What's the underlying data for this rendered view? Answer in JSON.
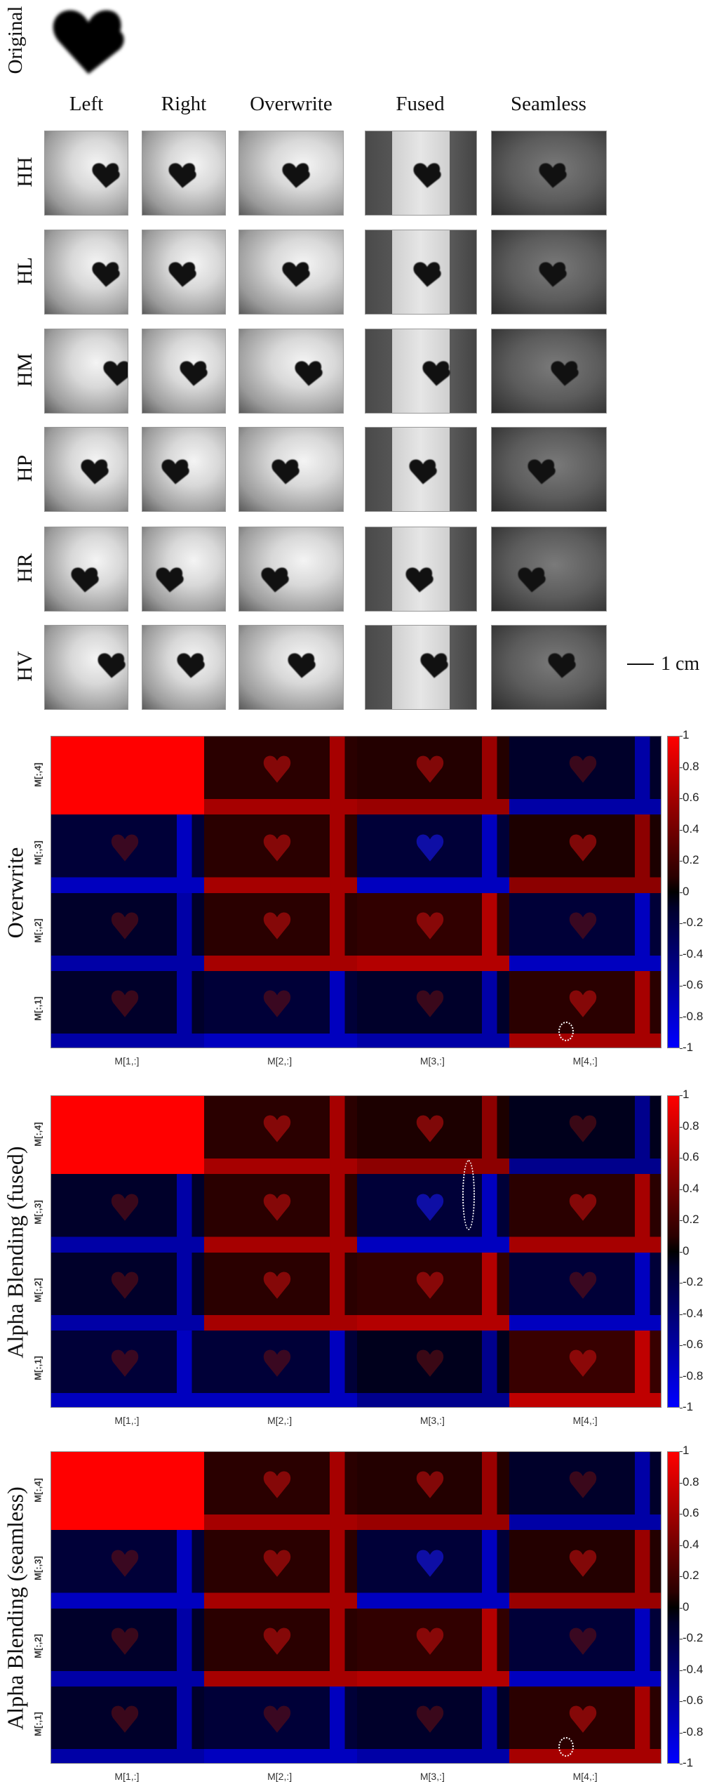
{
  "figure": {
    "original_label": "Original",
    "columns": [
      "Left",
      "Right",
      "Overwrite",
      "Fused",
      "Seamless"
    ],
    "rows": [
      "HH",
      "HL",
      "HM",
      "HP",
      "HR",
      "HV"
    ],
    "scale_bar": "1 cm"
  },
  "heatmaps": [
    {
      "label": "Overwrite",
      "x_labels": [
        "M[1,:]",
        "M[2,:]",
        "M[3,:]",
        "M[4,:]"
      ],
      "y_labels": [
        "M[:,4]",
        "M[:,3]",
        "M[:,2]",
        "M[:,1]"
      ]
    },
    {
      "label": "Alpha Blending (fused)",
      "x_labels": [
        "M[1,:]",
        "M[2,:]",
        "M[3,:]",
        "M[4,:]"
      ],
      "y_labels": [
        "M[:,4]",
        "M[:,3]",
        "M[:,2]",
        "M[:,1]"
      ]
    },
    {
      "label": "Alpha Blending (seamless)",
      "x_labels": [
        "M[1,:]",
        "M[2,:]",
        "M[3,:]",
        "M[4,:]"
      ],
      "y_labels": [
        "M[:,4]",
        "M[:,3]",
        "M[:,2]",
        "M[:,1]"
      ]
    }
  ],
  "colorbar": {
    "ticks": [
      "1",
      "0.8",
      "0.6",
      "0.4",
      "0.2",
      "0",
      "-0.2",
      "-0.4",
      "-0.6",
      "-0.8",
      "-1"
    ],
    "colors": {
      "max": "#ff0000",
      "zero": "#000000",
      "min": "#0000ff"
    }
  },
  "chart_data": [
    {
      "type": "heatmap",
      "title": "Overwrite",
      "x": [
        "M[1,:]",
        "M[2,:]",
        "M[3,:]",
        "M[4,:]"
      ],
      "y": [
        "M[:,4]",
        "M[:,3]",
        "M[:,2]",
        "M[:,1]"
      ],
      "colorbar_range": [
        -1,
        1
      ],
      "colorbar_ticks": [
        1,
        0.8,
        0.6,
        0.4,
        0.2,
        0,
        -0.2,
        -0.4,
        -0.6,
        -0.8,
        -1
      ],
      "approx_block_values": [
        [
          1.0,
          0.3,
          0.25,
          -0.3
        ],
        [
          -0.4,
          0.3,
          -0.4,
          0.2
        ],
        [
          -0.3,
          0.3,
          0.35,
          -0.4
        ],
        [
          -0.3,
          -0.4,
          -0.3,
          0.3
        ]
      ],
      "annotations": [
        "dotted circle in M[4,:] x M[:,1] block"
      ]
    },
    {
      "type": "heatmap",
      "title": "Alpha Blending (fused)",
      "x": [
        "M[1,:]",
        "M[2,:]",
        "M[3,:]",
        "M[4,:]"
      ],
      "y": [
        "M[:,4]",
        "M[:,3]",
        "M[:,2]",
        "M[:,1]"
      ],
      "colorbar_range": [
        -1,
        1
      ],
      "colorbar_ticks": [
        1,
        0.8,
        0.6,
        0.4,
        0.2,
        0,
        -0.2,
        -0.4,
        -0.6,
        -0.8,
        -1
      ],
      "approx_block_values": [
        [
          1.0,
          0.3,
          0.2,
          -0.2
        ],
        [
          -0.3,
          0.3,
          -0.4,
          0.3
        ],
        [
          -0.3,
          0.3,
          0.35,
          -0.4
        ],
        [
          -0.4,
          -0.4,
          -0.2,
          0.4
        ]
      ],
      "annotations": [
        "dotted vertical ellipse in M[3,:] x M[:,3] block"
      ]
    },
    {
      "type": "heatmap",
      "title": "Alpha Blending (seamless)",
      "x": [
        "M[1,:]",
        "M[2,:]",
        "M[3,:]",
        "M[4,:]"
      ],
      "y": [
        "M[:,4]",
        "M[:,3]",
        "M[:,2]",
        "M[:,1]"
      ],
      "colorbar_range": [
        -1,
        1
      ],
      "colorbar_ticks": [
        1,
        0.8,
        0.6,
        0.4,
        0.2,
        0,
        -0.2,
        -0.4,
        -0.6,
        -0.8,
        -1
      ],
      "approx_block_values": [
        [
          1.0,
          0.3,
          0.25,
          -0.3
        ],
        [
          -0.4,
          0.3,
          -0.4,
          0.25
        ],
        [
          -0.3,
          0.3,
          0.35,
          -0.4
        ],
        [
          -0.3,
          -0.4,
          -0.3,
          0.3
        ]
      ],
      "annotations": [
        "dotted circle in M[4,:] x M[:,1] block"
      ]
    }
  ]
}
